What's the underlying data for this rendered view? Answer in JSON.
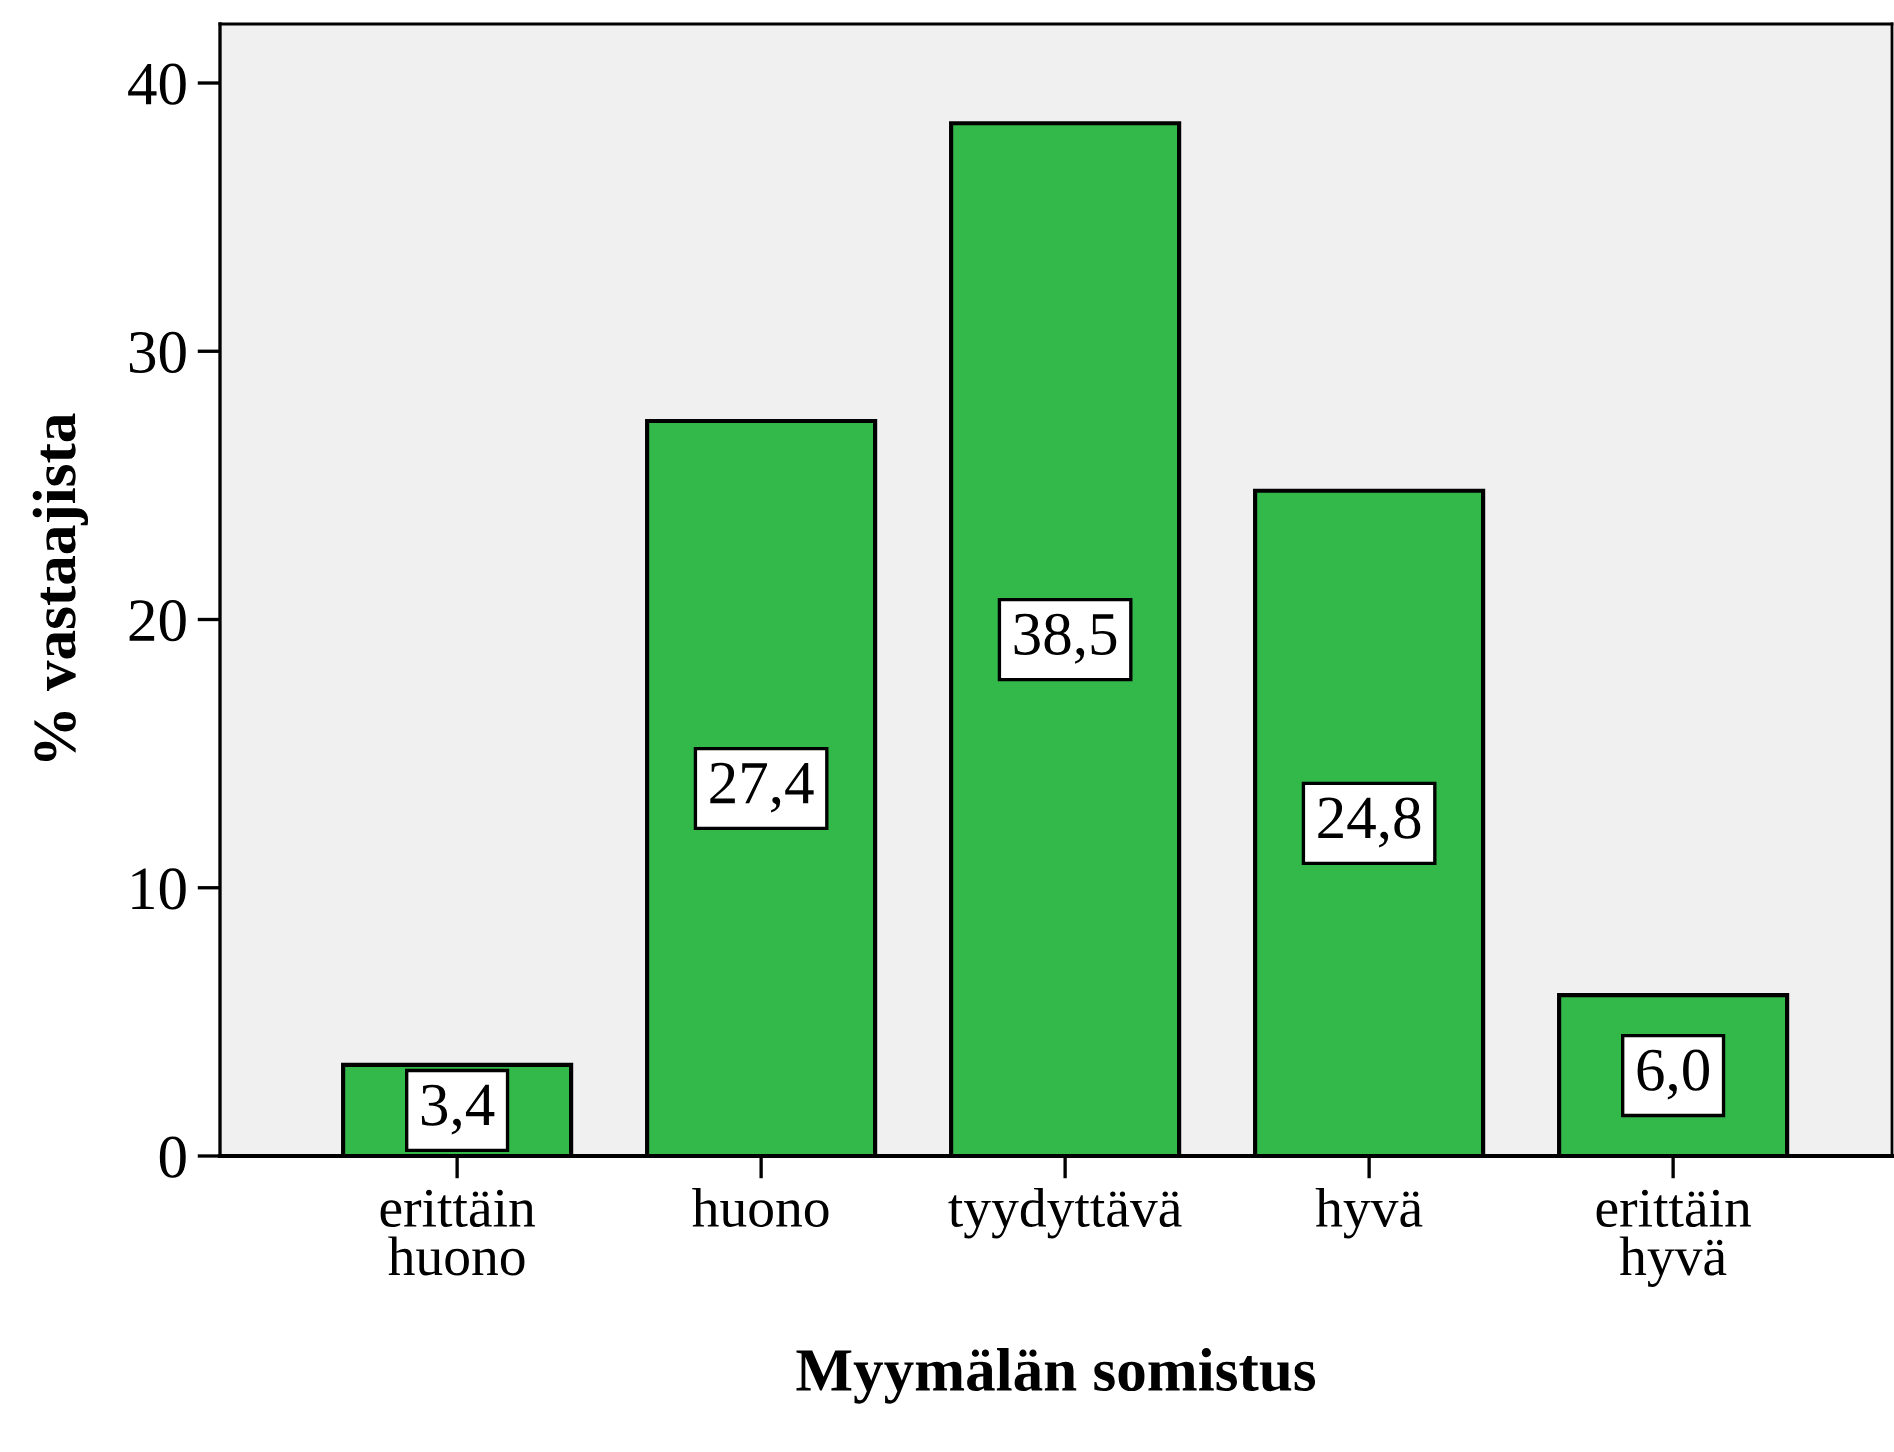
{
  "chart_data": {
    "type": "bar",
    "xlabel": "Myymälän somistus",
    "ylabel": "% vastaajista",
    "categories": [
      "erittäin\nhuono",
      "huono",
      "tyydyttävä",
      "hyvä",
      "erittäin\nhyvä"
    ],
    "values": [
      3.4,
      27.4,
      38.5,
      24.8,
      6.0
    ],
    "value_labels": [
      "3,4",
      "27,4",
      "38,5",
      "24,8",
      "6,0"
    ],
    "color": "#33b84a",
    "ylim": [
      0,
      42.2
    ],
    "yticks": [
      0,
      10,
      20,
      30,
      40
    ],
    "grid": false,
    "legend": false
  }
}
